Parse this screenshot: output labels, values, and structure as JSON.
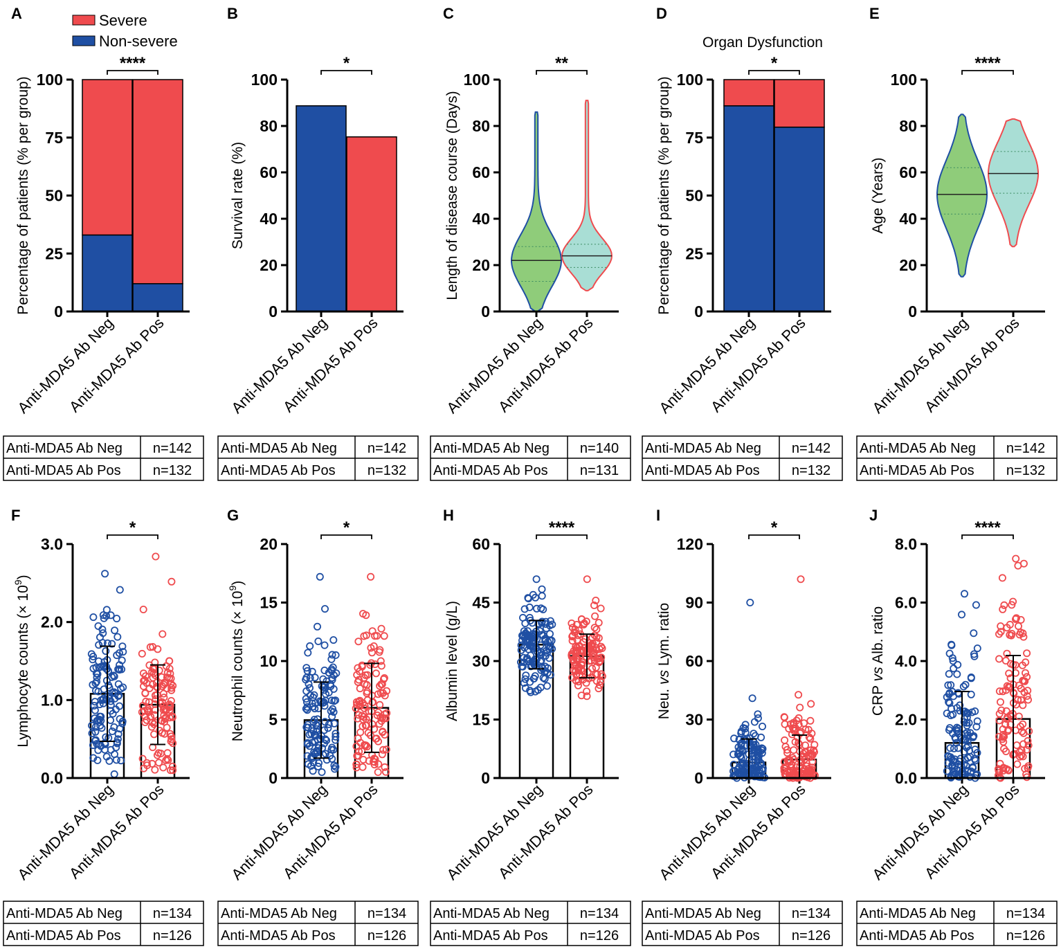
{
  "colors": {
    "neg": "#1f4fa3",
    "pos": "#ef4b4e",
    "neg_violin_fill": "#8fcc7a",
    "pos_violin_fill": "#a9ded5",
    "axis": "#000000"
  },
  "legend": {
    "severe": "Severe",
    "non_severe": "Non-severe"
  },
  "chart_data": [
    {
      "panel": "A",
      "type": "bar",
      "stacked": true,
      "title": "",
      "ylabel": "Percentage of patients (% per group)",
      "ylim": [
        0,
        100
      ],
      "yticks": [
        "0",
        "25",
        "50",
        "75",
        "100"
      ],
      "categories": [
        "Anti-MDA5 Ab Neg",
        "Anti-MDA5 Ab Pos"
      ],
      "series": [
        {
          "name": "Non-severe",
          "values": [
            33,
            12
          ]
        },
        {
          "name": "Severe",
          "values": [
            67,
            88
          ]
        }
      ],
      "significance": "****",
      "n_table": [
        [
          "Anti-MDA5 Ab Neg",
          "n=142"
        ],
        [
          "Anti-MDA5 Ab Pos",
          "n=132"
        ]
      ]
    },
    {
      "panel": "B",
      "type": "bar",
      "title": "",
      "ylabel": "Survival rate (%)",
      "ylim": [
        0,
        100
      ],
      "yticks": [
        "0",
        "20",
        "40",
        "60",
        "80",
        "100"
      ],
      "categories": [
        "Anti-MDA5 Ab Neg",
        "Anti-MDA5 Ab Pos"
      ],
      "values": [
        88.7,
        75.3
      ],
      "significance": "*",
      "n_table": [
        [
          "Anti-MDA5 Ab Neg",
          "n=142"
        ],
        [
          "Anti-MDA5 Ab Pos",
          "n=132"
        ]
      ]
    },
    {
      "panel": "C",
      "type": "violin",
      "title": "",
      "ylabel": "Length of disease course (Days)",
      "ylim": [
        0,
        100
      ],
      "yticks": [
        "0",
        "20",
        "40",
        "60",
        "80",
        "100"
      ],
      "categories": [
        "Anti-MDA5 Ab Neg",
        "Anti-MDA5 Ab Pos"
      ],
      "medians": [
        22,
        24
      ],
      "quartiles": [
        [
          13,
          28
        ],
        [
          19,
          29
        ]
      ],
      "ranges": [
        [
          0,
          86
        ],
        [
          9,
          91
        ]
      ],
      "significance": "**",
      "n_table": [
        [
          "Anti-MDA5 Ab Neg",
          "n=140"
        ],
        [
          "Anti-MDA5 Ab Pos",
          "n=131"
        ]
      ]
    },
    {
      "panel": "D",
      "type": "bar",
      "stacked": true,
      "title": "Organ Dysfunction",
      "ylabel": "Percentage of patients (% per group)",
      "ylim": [
        0,
        100
      ],
      "yticks": [
        "0",
        "25",
        "50",
        "75",
        "100"
      ],
      "categories": [
        "Anti-MDA5 Ab Neg",
        "Anti-MDA5 Ab Pos"
      ],
      "series": [
        {
          "name": "Non-severe",
          "values": [
            88.7,
            79.5
          ]
        },
        {
          "name": "Severe",
          "values": [
            11.3,
            20.5
          ]
        }
      ],
      "significance": "*",
      "n_table": [
        [
          "Anti-MDA5 Ab Neg",
          "n=142"
        ],
        [
          "Anti-MDA5 Ab Pos",
          "n=132"
        ]
      ]
    },
    {
      "panel": "E",
      "type": "violin",
      "title": "",
      "ylabel": "Age (Years)",
      "ylim": [
        0,
        100
      ],
      "yticks": [
        "0",
        "20",
        "40",
        "60",
        "80",
        "100"
      ],
      "categories": [
        "Anti-MDA5 Ab Neg",
        "Anti-MDA5 Ab Pos"
      ],
      "medians": [
        50.5,
        59.5
      ],
      "quartiles": [
        [
          42,
          62
        ],
        [
          51,
          69
        ]
      ],
      "ranges": [
        [
          15,
          85
        ],
        [
          28,
          83
        ]
      ],
      "significance": "****",
      "n_table": [
        [
          "Anti-MDA5 Ab Neg",
          "n=142"
        ],
        [
          "Anti-MDA5 Ab Pos",
          "n=132"
        ]
      ]
    },
    {
      "panel": "F",
      "type": "scatter_bar",
      "title": "",
      "ylabel": "Lymphocyte counts (× 10",
      "ylabel_sup": "9",
      "ylabel_tail": ")",
      "ylim": [
        0,
        3
      ],
      "yticks": [
        "0.0",
        "1.0",
        "2.0",
        "3.0"
      ],
      "categories": [
        "Anti-MDA5 Ab Neg",
        "Anti-MDA5 Ab Pos"
      ],
      "means": [
        1.08,
        0.94
      ],
      "sd": [
        0.61,
        0.51
      ],
      "n": [
        134,
        126
      ],
      "point_range": [
        [
          0.05,
          2.62
        ],
        [
          0.1,
          2.84
        ]
      ],
      "significance": "*",
      "n_table": [
        [
          "Anti-MDA5 Ab Neg",
          "n=134"
        ],
        [
          "Anti-MDA5 Ab Pos",
          "n=126"
        ]
      ]
    },
    {
      "panel": "G",
      "type": "scatter_bar",
      "title": "",
      "ylabel": "Neutrophil counts (× 10",
      "ylabel_sup": "9",
      "ylabel_tail": ")",
      "ylim": [
        0,
        20
      ],
      "yticks": [
        "0",
        "5",
        "10",
        "15",
        "20"
      ],
      "categories": [
        "Anti-MDA5 Ab Neg",
        "Anti-MDA5 Ab Pos"
      ],
      "means": [
        4.95,
        6.0
      ],
      "sd": [
        3.25,
        3.8
      ],
      "n": [
        134,
        126
      ],
      "point_range": [
        [
          0.5,
          17.2
        ],
        [
          0.5,
          17.2
        ]
      ],
      "significance": "*",
      "n_table": [
        [
          "Anti-MDA5 Ab Neg",
          "n=134"
        ],
        [
          "Anti-MDA5 Ab Pos",
          "n=126"
        ]
      ]
    },
    {
      "panel": "H",
      "type": "scatter_bar",
      "title": "",
      "ylabel": "Albumin level (g/L)",
      "ylim": [
        0,
        60
      ],
      "yticks": [
        "0",
        "15",
        "30",
        "45",
        "60"
      ],
      "categories": [
        "Anti-MDA5 Ab Neg",
        "Anti-MDA5 Ab Pos"
      ],
      "means": [
        34.2,
        31.3
      ],
      "sd": [
        6.2,
        5.6
      ],
      "n": [
        134,
        126
      ],
      "point_range": [
        [
          22,
          51
        ],
        [
          21,
          51
        ]
      ],
      "significance": "****",
      "n_table": [
        [
          "Anti-MDA5 Ab Neg",
          "n=134"
        ],
        [
          "Anti-MDA5 Ab Pos",
          "n=126"
        ]
      ]
    },
    {
      "panel": "I",
      "type": "scatter_bar",
      "title": "",
      "ylabel_parts": [
        "Neu. ",
        "vs",
        " Lym. ratio"
      ],
      "ylim": [
        0,
        120
      ],
      "yticks": [
        "0",
        "30",
        "60",
        "90",
        "120"
      ],
      "categories": [
        "Anti-MDA5 Ab Neg",
        "Anti-MDA5 Ab Pos"
      ],
      "means": [
        8,
        9.5
      ],
      "sd": [
        12,
        12.5
      ],
      "n": [
        134,
        126
      ],
      "point_range": [
        [
          0,
          90
        ],
        [
          0,
          102
        ]
      ],
      "significance": "*",
      "n_table": [
        [
          "Anti-MDA5 Ab Neg",
          "n=134"
        ],
        [
          "Anti-MDA5 Ab Pos",
          "n=126"
        ]
      ]
    },
    {
      "panel": "J",
      "type": "scatter_bar",
      "title": "",
      "ylabel_parts": [
        "CRP ",
        "vs",
        " Alb. ratio"
      ],
      "ylim": [
        0,
        8
      ],
      "yticks": [
        "0.0",
        "2.0",
        "4.0",
        "6.0",
        "8.0"
      ],
      "categories": [
        "Anti-MDA5 Ab Neg",
        "Anti-MDA5 Ab Pos"
      ],
      "means": [
        1.2,
        2.02
      ],
      "sd": [
        1.76,
        2.17
      ],
      "n": [
        134,
        126
      ],
      "point_range": [
        [
          0,
          6.3
        ],
        [
          0,
          7.5
        ]
      ],
      "significance": "****",
      "n_table": [
        [
          "Anti-MDA5 Ab Neg",
          "n=134"
        ],
        [
          "Anti-MDA5 Ab Pos",
          "n=126"
        ]
      ]
    }
  ]
}
